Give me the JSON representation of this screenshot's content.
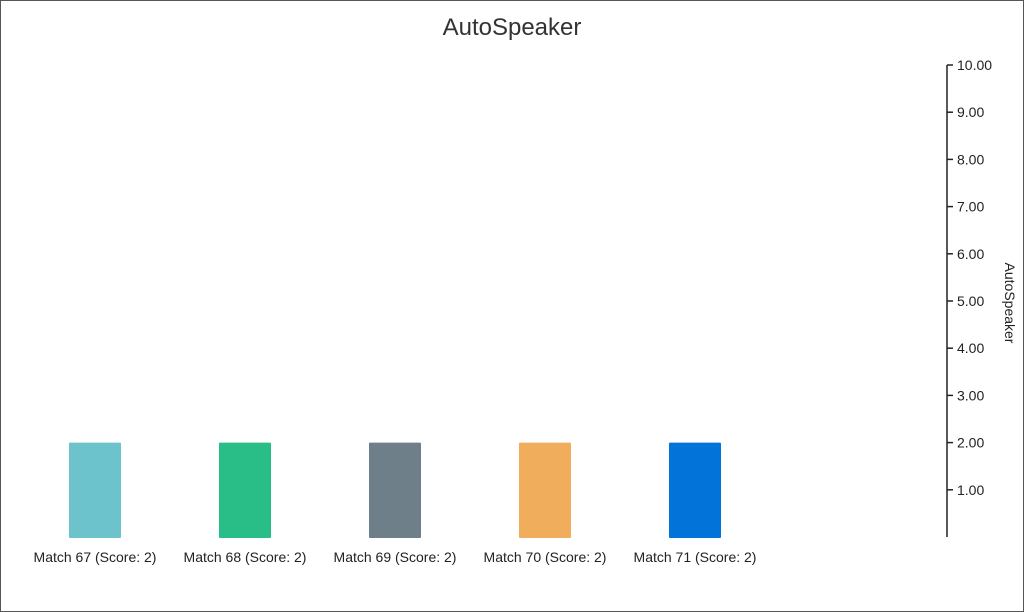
{
  "chart_data": {
    "type": "bar",
    "title": "AutoSpeaker",
    "ylabel": "AutoSpeaker",
    "xlabel": "",
    "categories": [
      "Match 67 (Score: 2)",
      "Match 68 (Score: 2)",
      "Match 69 (Score: 2)",
      "Match 70 (Score: 2)",
      "Match 71 (Score: 2)"
    ],
    "values": [
      2,
      2,
      2,
      2,
      2
    ],
    "colors": [
      "#6cc3cc",
      "#29be88",
      "#6e7f8a",
      "#f0ae5c",
      "#0274d9"
    ],
    "ylim": [
      0,
      10
    ],
    "yticks": [
      "1.00",
      "2.00",
      "3.00",
      "4.00",
      "5.00",
      "6.00",
      "7.00",
      "8.00",
      "9.00",
      "10.00"
    ],
    "y_axis_side": "right",
    "grid": false,
    "legend": "none"
  }
}
